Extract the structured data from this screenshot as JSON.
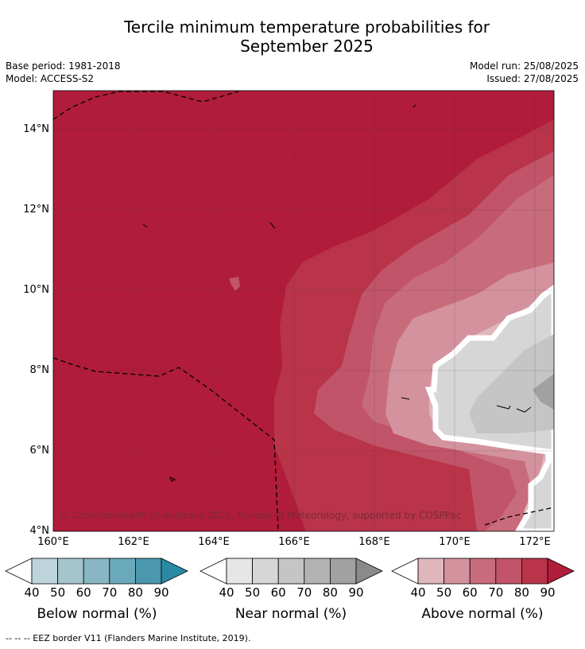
{
  "header": {
    "title_line1": "Tercile minimum temperature probabilities for",
    "title_line2": "September 2025",
    "base_period": "Base period: 1981-2018",
    "model": "Model: ACCESS-S2",
    "model_run": "Model run: 25/08/2025",
    "issued": "Issued: 27/08/2025"
  },
  "map": {
    "lat_ticks": [
      "14°N",
      "12°N",
      "10°N",
      "8°N",
      "6°N",
      "4°N"
    ],
    "lon_ticks": [
      "160°E",
      "162°E",
      "164°E",
      "166°E",
      "168°E",
      "170°E",
      "172°E"
    ],
    "copyright": "© Commonwealth of Australia 2025, Bureau of Meteorology, supported by COSPPac"
  },
  "colorbars": [
    {
      "title": "Below normal (%)",
      "labels": [
        "40",
        "50",
        "60",
        "70",
        "80",
        "90"
      ],
      "colors": [
        "#bed4db",
        "#a5c5cd",
        "#88b6c3",
        "#6aa9ba",
        "#4a97ae",
        "#2a8aa3"
      ]
    },
    {
      "title": "Near normal (%)",
      "labels": [
        "40",
        "50",
        "60",
        "70",
        "80",
        "90"
      ],
      "colors": [
        "#e6e6e6",
        "#d6d6d6",
        "#c5c5c5",
        "#b3b3b3",
        "#a1a1a1",
        "#8a8a8a"
      ]
    },
    {
      "title": "Above normal (%)",
      "labels": [
        "40",
        "50",
        "60",
        "70",
        "80",
        "90"
      ],
      "colors": [
        "#e0b6bd",
        "#d3929d",
        "#c86c7c",
        "#c15468",
        "#b93449",
        "#b01c3a"
      ]
    }
  ],
  "footnote": "--  --  -- EEZ border V11 (Flanders Marine Institute, 2019)."
}
